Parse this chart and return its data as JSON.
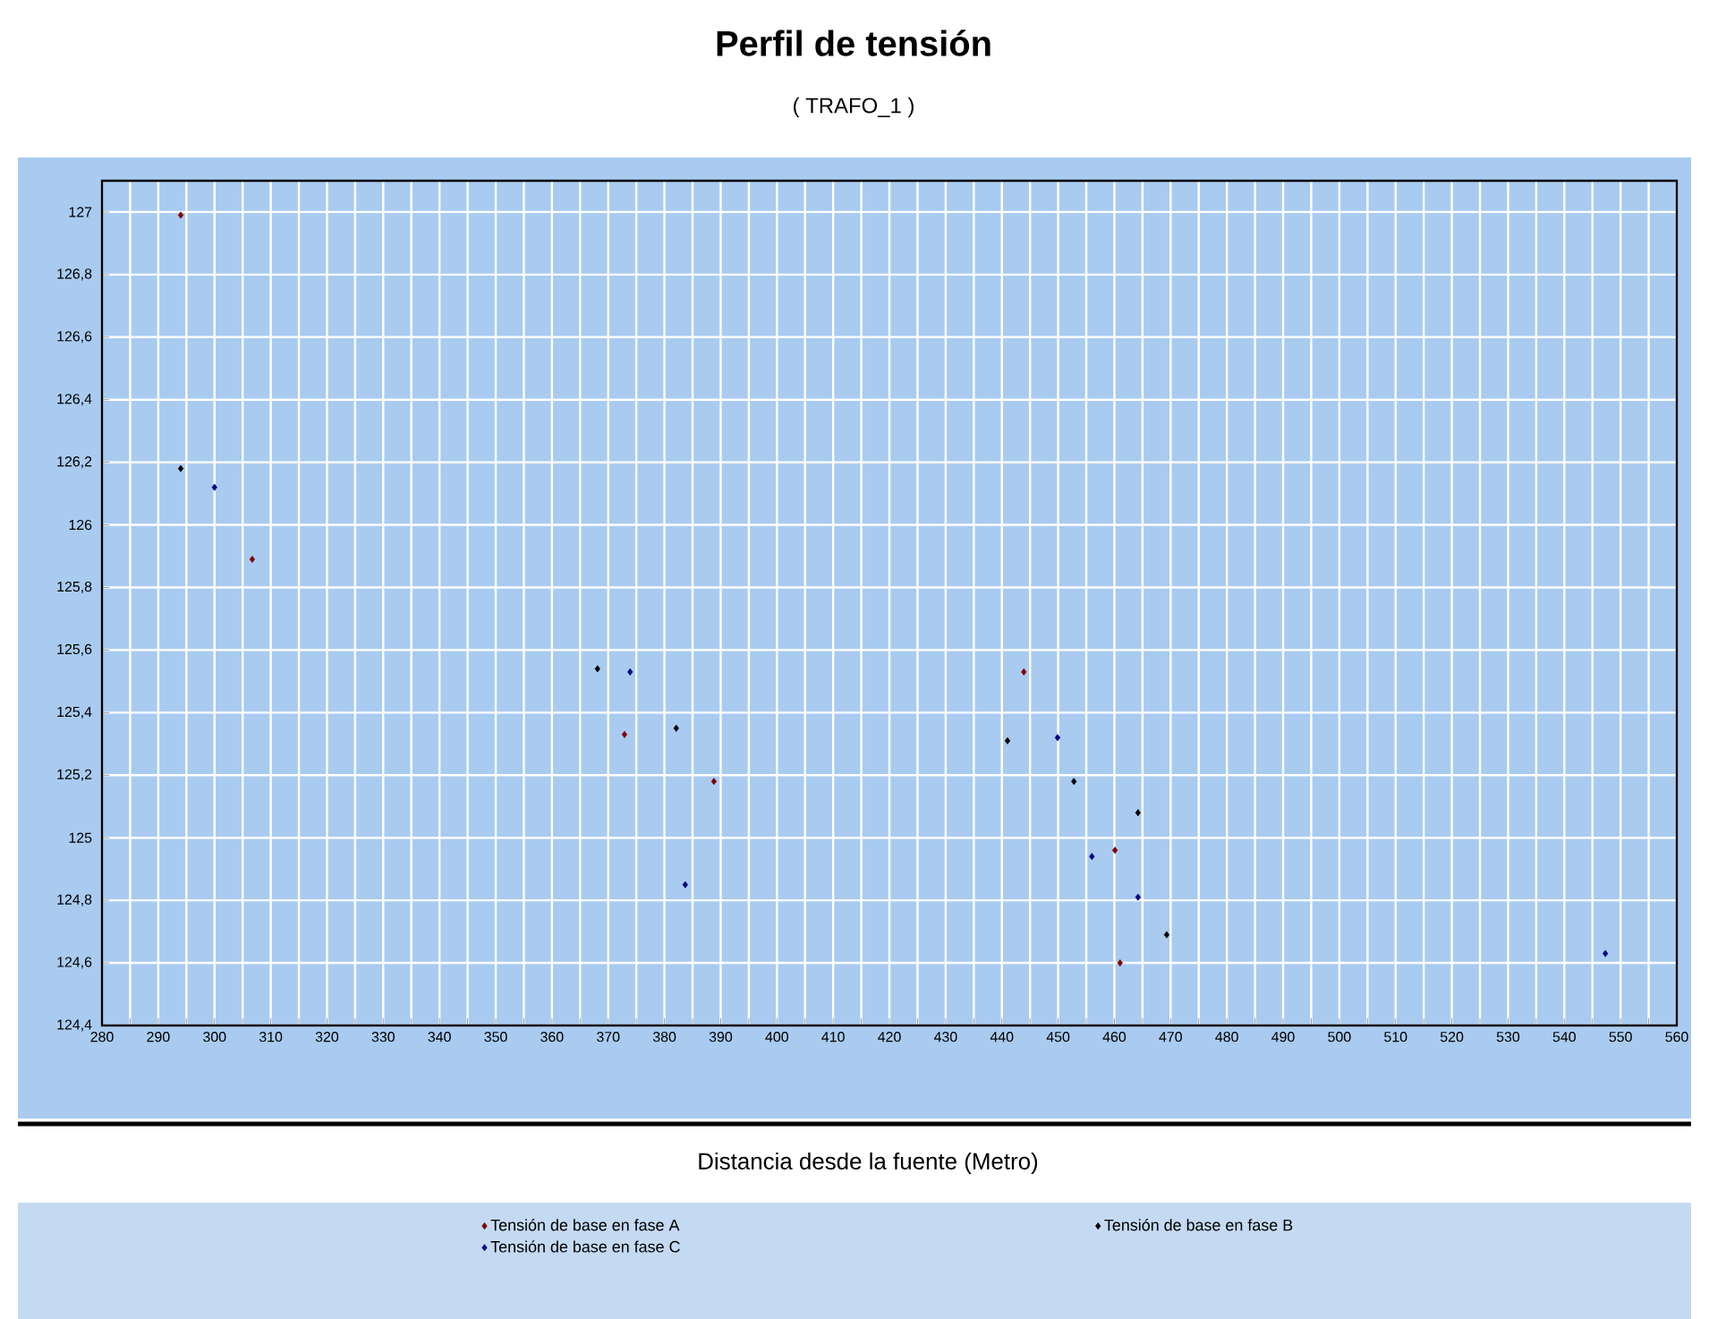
{
  "chart_data": {
    "type": "scatter",
    "title": "Perfil de tensión",
    "subtitle": "( TRAFO_1 )",
    "xlabel": "Distancia desde la fuente (Metro)",
    "xlim": [
      280,
      560
    ],
    "xticks": [
      280,
      290,
      300,
      310,
      320,
      330,
      340,
      350,
      360,
      370,
      380,
      390,
      400,
      410,
      420,
      430,
      440,
      450,
      460,
      470,
      480,
      490,
      500,
      510,
      520,
      530,
      540,
      550,
      560
    ],
    "ylim": [
      124.4,
      127.1
    ],
    "yticks": [
      {
        "value": 124.4,
        "label": "124,4"
      },
      {
        "value": 124.6,
        "label": "124,6"
      },
      {
        "value": 124.8,
        "label": "124,8"
      },
      {
        "value": 125,
        "label": "125"
      },
      {
        "value": 125.2,
        "label": "125,2"
      },
      {
        "value": 125.4,
        "label": "125,4"
      },
      {
        "value": 125.6,
        "label": "125,6"
      },
      {
        "value": 125.8,
        "label": "125,8"
      },
      {
        "value": 126,
        "label": "126"
      },
      {
        "value": 126.2,
        "label": "126,2"
      },
      {
        "value": 126.4,
        "label": "126,4"
      },
      {
        "value": 126.6,
        "label": "126,6"
      },
      {
        "value": 126.8,
        "label": "126,8"
      },
      {
        "value": 127,
        "label": "127"
      }
    ],
    "grid": true,
    "legend": "bottom",
    "marker": "diamond",
    "series": [
      {
        "name": "Tensión de base en fase A",
        "color": "#800000",
        "x": [
          294,
          306.7,
          372.9,
          388.8,
          443.9,
          460.1,
          461
        ],
        "values": [
          126.99,
          125.89,
          125.33,
          125.18,
          125.53,
          124.96,
          124.6
        ]
      },
      {
        "name": "Tensión de base en fase B",
        "color": "#000000",
        "x": [
          294,
          368.1,
          382.1,
          441,
          452.8,
          464.2,
          469.3
        ],
        "values": [
          126.18,
          125.54,
          125.35,
          125.31,
          125.18,
          125.08,
          124.69
        ]
      },
      {
        "name": "Tensión de base en fase C",
        "color": "#000080",
        "x": [
          300,
          373.9,
          383.7,
          449.9,
          456,
          464.2,
          547.3
        ],
        "values": [
          126.12,
          125.53,
          124.85,
          125.32,
          124.94,
          124.81,
          124.63
        ]
      }
    ]
  }
}
